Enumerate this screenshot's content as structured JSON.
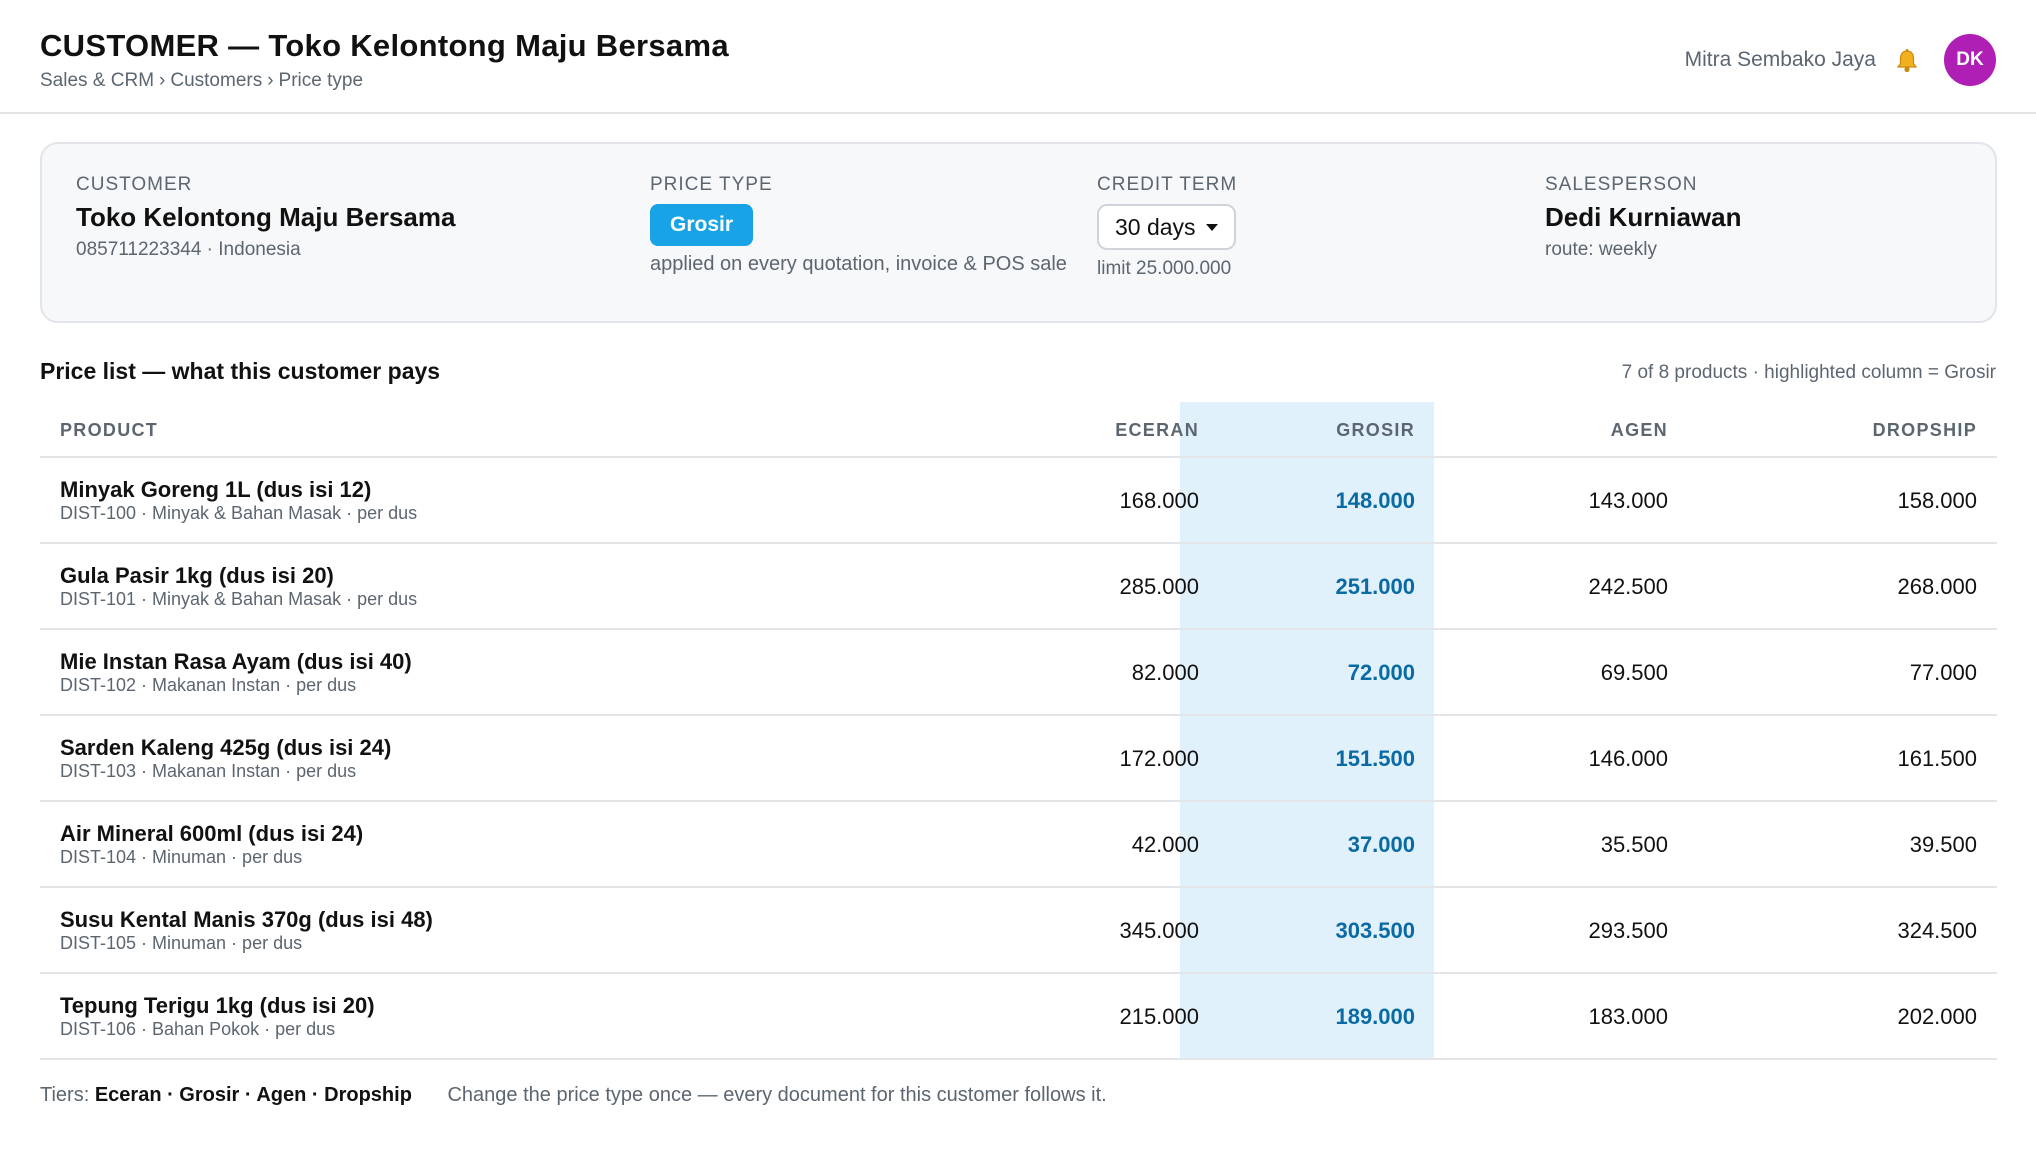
{
  "header": {
    "title": "CUSTOMER — Toko Kelontong Maju Bersama",
    "breadcrumbs": [
      "Sales & CRM",
      "Customers",
      "Price type"
    ],
    "breadcrumb_separator": "›",
    "org_name": "Mitra Sembako Jaya",
    "avatar_initials": "DK",
    "avatar_color": "#b01fb5",
    "notification_icon": "bell-icon"
  },
  "customer_card": {
    "customer": {
      "label": "CUSTOMER",
      "name": "Toko Kelontong Maju Bersama",
      "details": "085711223344 · Indonesia"
    },
    "price_type": {
      "label": "PRICE TYPE",
      "value": "Grosir",
      "note": "applied on every quotation, invoice & POS sale",
      "badge_color": "#17a3e6"
    },
    "credit_term": {
      "label": "CREDIT TERM",
      "value": "30 days",
      "limit": "limit 25.000.000"
    },
    "salesperson": {
      "label": "SALESPERSON",
      "name": "Dedi Kurniawan",
      "route": "route: weekly"
    }
  },
  "price_list": {
    "title": "Price list — what this customer pays",
    "meta": "7 of 8 products · highlighted column = Grosir",
    "highlight_color": "#e1f1fb",
    "columns": {
      "product": "PRODUCT",
      "eceran": "ECERAN",
      "grosir": "GROSIR",
      "agen": "AGEN",
      "dropship": "DROPSHIP"
    },
    "rows": [
      {
        "name": "Minyak Goreng 1L (dus isi 12)",
        "meta": "DIST-100 · Minyak & Bahan Masak · per dus",
        "eceran": "168.000",
        "grosir": "148.000",
        "agen": "143.000",
        "dropship": "158.000"
      },
      {
        "name": "Gula Pasir 1kg (dus isi 20)",
        "meta": "DIST-101 · Minyak & Bahan Masak · per dus",
        "eceran": "285.000",
        "grosir": "251.000",
        "agen": "242.500",
        "dropship": "268.000"
      },
      {
        "name": "Mie Instan Rasa Ayam (dus isi 40)",
        "meta": "DIST-102 · Makanan Instan · per dus",
        "eceran": "82.000",
        "grosir": "72.000",
        "agen": "69.500",
        "dropship": "77.000"
      },
      {
        "name": "Sarden Kaleng 425g (dus isi 24)",
        "meta": "DIST-103 · Makanan Instan · per dus",
        "eceran": "172.000",
        "grosir": "151.500",
        "agen": "146.000",
        "dropship": "161.500"
      },
      {
        "name": "Air Mineral 600ml (dus isi 24)",
        "meta": "DIST-104 · Minuman · per dus",
        "eceran": "42.000",
        "grosir": "37.000",
        "agen": "35.500",
        "dropship": "39.500"
      },
      {
        "name": "Susu Kental Manis 370g (dus isi 48)",
        "meta": "DIST-105 · Minuman · per dus",
        "eceran": "345.000",
        "grosir": "303.500",
        "agen": "293.500",
        "dropship": "324.500"
      },
      {
        "name": "Tepung Terigu 1kg (dus isi 20)",
        "meta": "DIST-106 · Bahan Pokok · per dus",
        "eceran": "215.000",
        "grosir": "189.000",
        "agen": "183.000",
        "dropship": "202.000"
      }
    ]
  },
  "footer": {
    "tiers_label": "Tiers:",
    "tiers": "Eceran · Grosir · Agen · Dropship",
    "note": "Change the price type once — every document for this customer follows it."
  }
}
